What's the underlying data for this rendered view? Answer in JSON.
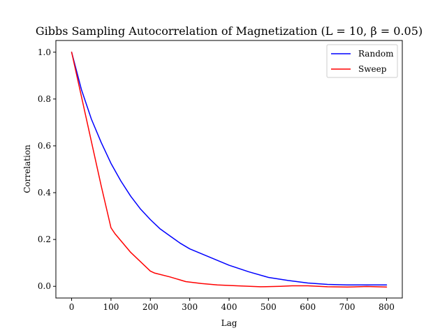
{
  "chart_data": {
    "type": "line",
    "title": "Gibbs Sampling Autocorrelation of Magnetization (L = 10, β = 0.05)",
    "xlabel": "Lag",
    "ylabel": "Correlation",
    "xlim": [
      -40,
      840
    ],
    "ylim": [
      -0.05,
      1.05
    ],
    "xticks": [
      0,
      100,
      200,
      300,
      400,
      500,
      600,
      700,
      800
    ],
    "xtick_labels": [
      "0",
      "100",
      "200",
      "300",
      "400",
      "500",
      "600",
      "700",
      "800"
    ],
    "yticks": [
      0.0,
      0.2,
      0.4,
      0.6,
      0.8,
      1.0
    ],
    "ytick_labels": [
      "0.0",
      "0.2",
      "0.4",
      "0.6",
      "0.8",
      "1.0"
    ],
    "grid": false,
    "legend_position": "top-right",
    "series": [
      {
        "name": "Random",
        "color": "#0000ff",
        "x": [
          0,
          25,
          50,
          75,
          100,
          125,
          150,
          175,
          200,
          225,
          250,
          275,
          300,
          350,
          400,
          450,
          500,
          550,
          600,
          650,
          700,
          750,
          800
        ],
        "y": [
          1.0,
          0.84,
          0.715,
          0.615,
          0.525,
          0.45,
          0.385,
          0.33,
          0.285,
          0.245,
          0.215,
          0.185,
          0.16,
          0.125,
          0.09,
          0.062,
          0.038,
          0.025,
          0.014,
          0.008,
          0.006,
          0.006,
          0.006
        ]
      },
      {
        "name": "Sweep",
        "color": "#ff0000",
        "x": [
          0,
          25,
          50,
          75,
          100,
          110,
          150,
          200,
          210,
          250,
          290,
          330,
          370,
          420,
          480,
          530,
          560,
          600,
          650,
          700,
          750,
          800
        ],
        "y": [
          1.0,
          0.81,
          0.62,
          0.43,
          0.25,
          0.225,
          0.145,
          0.065,
          0.057,
          0.04,
          0.02,
          0.012,
          0.006,
          0.002,
          -0.002,
          0.0,
          0.002,
          0.002,
          -0.002,
          -0.003,
          -0.001,
          -0.003
        ]
      }
    ]
  }
}
